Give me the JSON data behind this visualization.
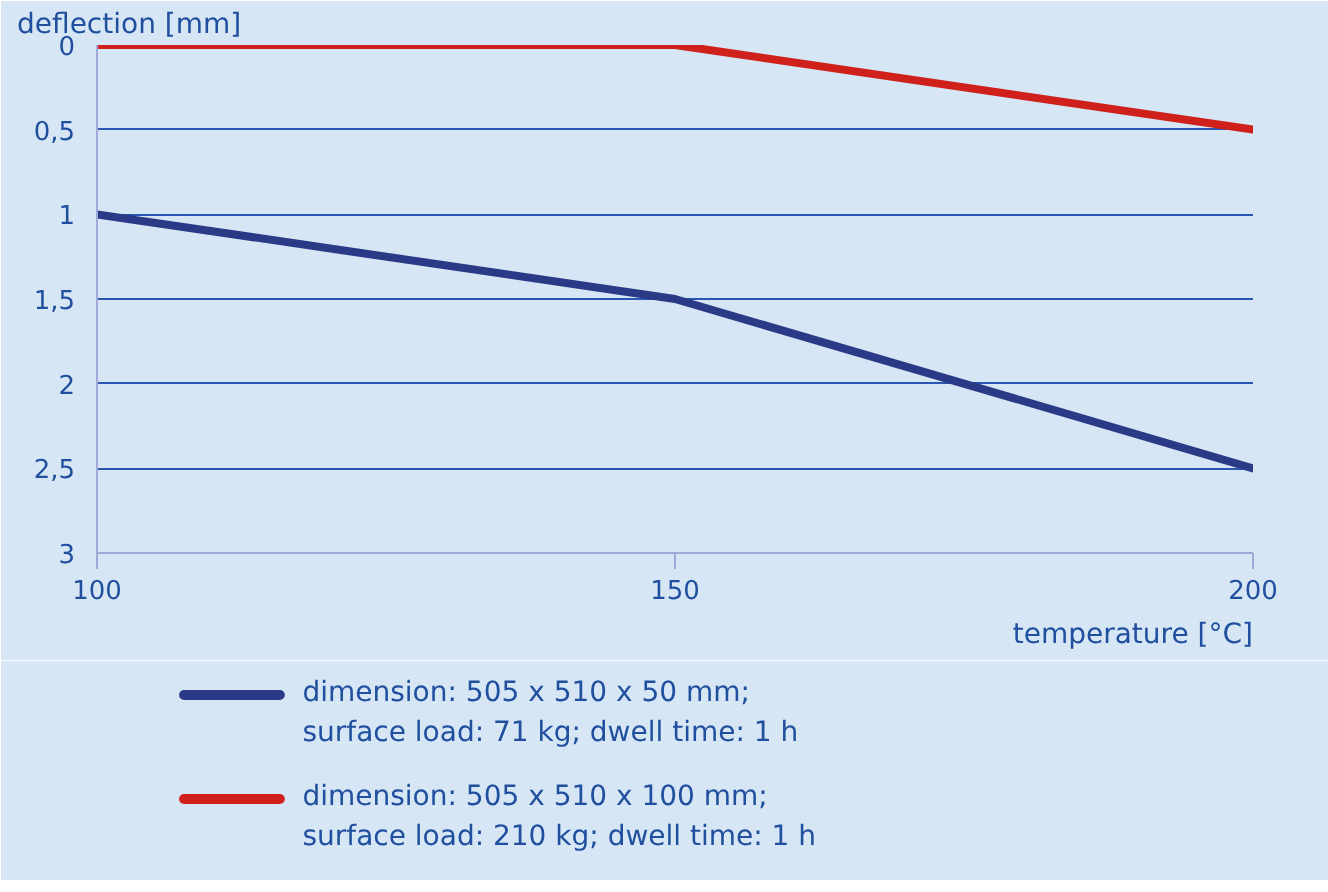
{
  "chart_data": {
    "type": "line",
    "ylabel": "deflection [mm]",
    "xlabel": "temperature [°C]",
    "x": [
      100,
      150,
      200
    ],
    "series": [
      {
        "name": "dimension: 505 x 510 x 50 mm;\nsurface load: 71 kg; dwell time: 1 h",
        "color": "#2b3a86",
        "values": [
          1,
          1.5,
          2.5
        ]
      },
      {
        "name": "dimension: 505 x 510 x 100 mm;\nsurface load: 210 kg; dwell time: 1 h",
        "color": "#d0201c",
        "values": [
          0,
          0,
          0.5
        ]
      }
    ],
    "xlim": [
      100,
      200
    ],
    "xticks": [
      100,
      150,
      200
    ],
    "ylim": [
      3,
      0
    ],
    "yticks": [
      0,
      {
        "value": 0.5,
        "label": "0,5"
      },
      1,
      {
        "value": 1.5,
        "label": "1,5"
      },
      2,
      {
        "value": 2.5,
        "label": "2,5"
      },
      3
    ],
    "grid": "y",
    "legend": "bottom",
    "marker": "none",
    "line_style": "solid"
  }
}
